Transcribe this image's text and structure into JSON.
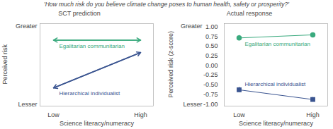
{
  "title": "'How much risk do you believe climate change poses to human health, safety or prosperity?'",
  "chart_data": [
    {
      "type": "arrow",
      "title": "SCT prediction",
      "xlabel": "Science literacy/numeracy",
      "ylabel": "Perceived risk",
      "categories": [
        "Low",
        "High"
      ],
      "ylim": [
        0,
        1
      ],
      "yticks": [],
      "tick_labels": "x",
      "annotations": [
        "Greater",
        "Lesser"
      ],
      "series": [
        {
          "name": "Egalitarian communitarian",
          "color": "#3aaa7e",
          "values": [
            0.8,
            0.8
          ]
        },
        {
          "name": "Hierarchical individualist",
          "color": "#3a5490",
          "values": [
            0.22,
            0.65
          ]
        }
      ]
    },
    {
      "type": "line",
      "title": "Actual response",
      "xlabel": "Science literacy/numeracy",
      "ylabel": "Perceived risk (z-score)",
      "categories": [
        "Low",
        "High"
      ],
      "ylim": [
        -1.05,
        1.08
      ],
      "yticks": [
        {
          "value": -1.0,
          "label": "-1.00"
        },
        {
          "value": -0.75,
          "label": "-0.75"
        },
        {
          "value": -0.5,
          "label": "-0.50"
        },
        {
          "value": -0.25,
          "label": "-0.25"
        },
        {
          "value": 0.0,
          "label": "0.00"
        },
        {
          "value": 0.25,
          "label": "0.25"
        },
        {
          "value": 0.5,
          "label": "0.50"
        },
        {
          "value": 0.75,
          "label": "0.75"
        },
        {
          "value": 1.0,
          "label": "1.00"
        }
      ],
      "annotations": [
        "Greater",
        "Lesser"
      ],
      "series": [
        {
          "name": "Egalitarian communitarian",
          "color": "#3aaa7e",
          "marker": "circle",
          "values": [
            0.71,
            0.79
          ],
          "errors": [
            0.07,
            0.05
          ]
        },
        {
          "name": "Hierarchical individualist",
          "color": "#3a5490",
          "marker": "square",
          "values": [
            -0.63,
            -0.88
          ],
          "errors": [
            0.07,
            0.055
          ]
        }
      ]
    }
  ]
}
